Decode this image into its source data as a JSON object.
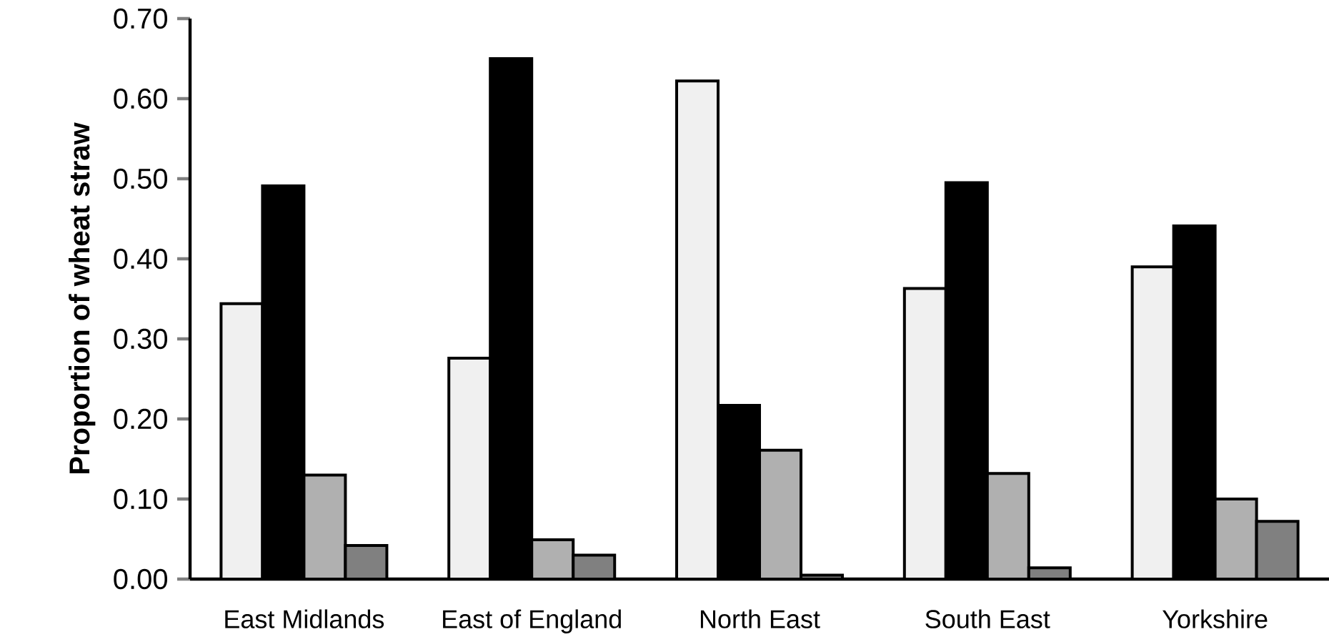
{
  "chart_data": {
    "type": "bar",
    "ylabel": "Proportion of wheat straw",
    "categories": [
      "East Midlands",
      "East of England",
      "North East",
      "South East",
      "Yorkshire"
    ],
    "series": [
      {
        "color": "#f0f0f0",
        "values": [
          0.344,
          0.276,
          0.622,
          0.363,
          0.39
        ]
      },
      {
        "color": "#000000",
        "values": [
          0.491,
          0.65,
          0.217,
          0.495,
          0.441
        ]
      },
      {
        "color": "#b0b0b0",
        "values": [
          0.13,
          0.049,
          0.161,
          0.132,
          0.1
        ]
      },
      {
        "color": "#808080",
        "values": [
          0.042,
          0.03,
          0.005,
          0.014,
          0.072
        ]
      }
    ],
    "ylim": [
      0,
      0.7
    ],
    "yticks": [
      {
        "value": 0,
        "label": "0.00"
      },
      {
        "value": 0.1,
        "label": "0.10"
      },
      {
        "value": 0.2,
        "label": "0.20"
      },
      {
        "value": 0.3,
        "label": "0.30"
      },
      {
        "value": 0.4,
        "label": "0.40"
      },
      {
        "value": 0.5,
        "label": "0.50"
      },
      {
        "value": 0.6,
        "label": "0.60"
      },
      {
        "value": 0.7,
        "label": "0.70"
      }
    ]
  }
}
